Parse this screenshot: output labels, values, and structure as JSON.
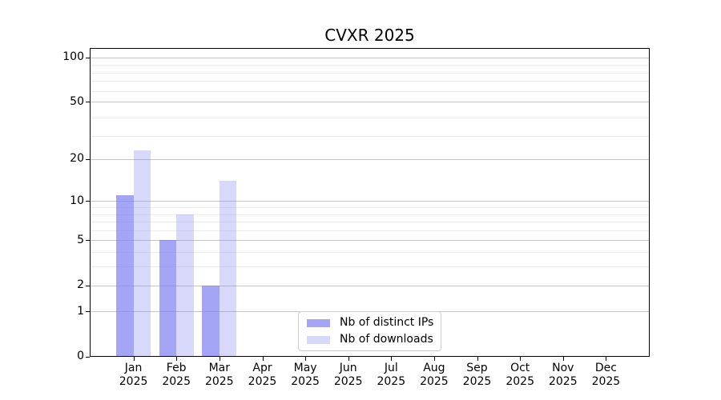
{
  "chart_data": {
    "type": "bar",
    "title": "CVXR 2025",
    "x_axis": {
      "categories": [
        "Jan",
        "Feb",
        "Mar",
        "Apr",
        "May",
        "Jun",
        "Jul",
        "Aug",
        "Sep",
        "Oct",
        "Nov",
        "Dec"
      ],
      "year_label": "2025"
    },
    "series": [
      {
        "name": "Nb of distinct IPs",
        "color": "rgba(122,122,240,0.68)",
        "color_hex": "#a6a6f4",
        "values": [
          11,
          5,
          2,
          0,
          0,
          0,
          0,
          0,
          0,
          0,
          0,
          0
        ]
      },
      {
        "name": "Nb of downloads",
        "color": "rgba(122,122,240,0.29)",
        "color_hex": "#d8d8fa",
        "values": [
          23,
          8,
          14,
          0,
          0,
          0,
          0,
          0,
          0,
          0,
          0,
          0
        ]
      }
    ],
    "y_axis": {
      "scale": "log1p",
      "ticks": [
        0,
        1,
        2,
        5,
        10,
        20,
        50,
        100
      ],
      "minor_gridlines": [
        3,
        4,
        6,
        7,
        8,
        9,
        29,
        39,
        59,
        69,
        79,
        89
      ],
      "range": [
        0,
        110
      ]
    },
    "legend": {
      "position": "lower-center"
    },
    "grid": {
      "horizontal": true,
      "vertical": false,
      "major_color": "#c6c6c6",
      "minor_color": "#ececec"
    }
  }
}
